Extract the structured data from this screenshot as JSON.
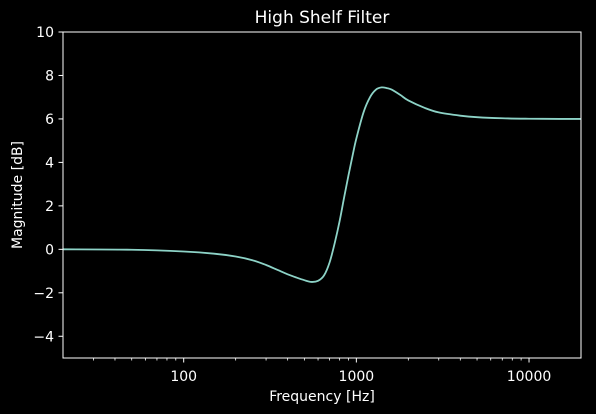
{
  "chart_data": {
    "type": "line",
    "title": "High Shelf Filter",
    "xlabel": "Frequency [Hz]",
    "ylabel": "Magnitude [dB]",
    "xscale": "log",
    "xlim": [
      20,
      20000
    ],
    "ylim": [
      -5,
      10
    ],
    "xticks": [
      100,
      1000,
      10000
    ],
    "xtick_labels": [
      "100",
      "1000",
      "10000"
    ],
    "yticks": [
      -4,
      -2,
      0,
      2,
      4,
      6,
      8,
      10
    ],
    "ytick_labels": [
      "−4",
      "−2",
      "0",
      "2",
      "4",
      "6",
      "8",
      "10"
    ],
    "grid": false,
    "background": "#000000",
    "foreground": "#ffffff",
    "series": [
      {
        "color": "#8dd3c7",
        "x": [
          20,
          50,
          100,
          150,
          200,
          250,
          300,
          350,
          400,
          450,
          500,
          550,
          600,
          650,
          700,
          750,
          800,
          850,
          900,
          950,
          1000,
          1100,
          1200,
          1300,
          1400,
          1500,
          1600,
          1800,
          2000,
          2500,
          3000,
          4000,
          5000,
          7000,
          10000,
          15000,
          20000
        ],
        "y": [
          0,
          -0.02,
          -0.1,
          -0.2,
          -0.33,
          -0.5,
          -0.72,
          -0.95,
          -1.15,
          -1.3,
          -1.42,
          -1.5,
          -1.45,
          -1.2,
          -0.6,
          0.3,
          1.3,
          2.4,
          3.4,
          4.3,
          5.1,
          6.3,
          7.0,
          7.35,
          7.45,
          7.42,
          7.35,
          7.1,
          6.85,
          6.5,
          6.3,
          6.15,
          6.08,
          6.03,
          6.01,
          6.0,
          6.0
        ]
      }
    ]
  }
}
